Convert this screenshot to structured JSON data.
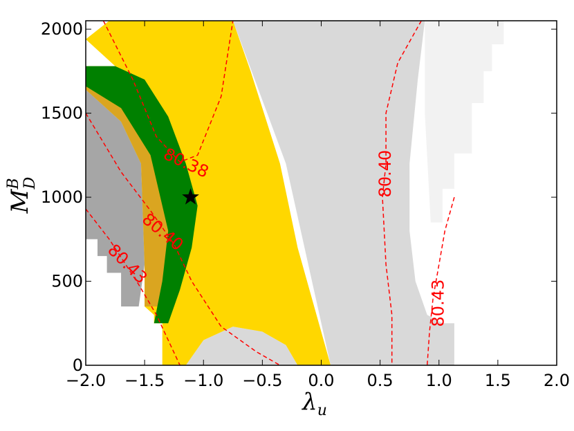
{
  "chart_data": {
    "type": "contour",
    "xlabel": "λ",
    "xlabel_sub": "u",
    "ylabel": "M",
    "ylabel_sup": "B",
    "ylabel_sub": "D",
    "xlim": [
      -2.0,
      2.0
    ],
    "ylim": [
      0,
      2050
    ],
    "x_ticks": [
      -2.0,
      -1.5,
      -1.0,
      -0.5,
      0.0,
      0.5,
      1.0,
      1.5,
      2.0
    ],
    "x_tick_labels": [
      "−2.0",
      "−1.5",
      "−1.0",
      "−0.5",
      "0.0",
      "0.5",
      "1.0",
      "1.5",
      "2.0"
    ],
    "y_ticks": [
      0,
      500,
      1000,
      1500,
      2000
    ],
    "y_tick_labels": [
      "0",
      "500",
      "1000",
      "1500",
      "2000"
    ],
    "grid": false,
    "colors": {
      "light_gray": "#d9d9d9",
      "lighter_gray": "#f2f2f2",
      "gray": "#a6a6a6",
      "yellow": "#ffd700",
      "goldenrod": "#daa520",
      "green": "#008000",
      "contour": "#ff0000"
    },
    "regions": [
      {
        "color": "lighter_gray",
        "points": [
          [
            0.88,
            2050
          ],
          [
            1.55,
            2050
          ],
          [
            1.55,
            1910
          ],
          [
            1.45,
            1910
          ],
          [
            1.45,
            1750
          ],
          [
            1.38,
            1750
          ],
          [
            1.38,
            1560
          ],
          [
            1.28,
            1560
          ],
          [
            1.28,
            1260
          ],
          [
            1.13,
            1260
          ],
          [
            1.13,
            1050
          ],
          [
            1.03,
            1050
          ],
          [
            1.03,
            850
          ],
          [
            0.93,
            850
          ],
          [
            0.88,
            1500
          ]
        ]
      },
      {
        "color": "light_gray",
        "points": [
          [
            -1.55,
            2050
          ],
          [
            0.88,
            2050
          ],
          [
            0.82,
            1700
          ],
          [
            0.75,
            1200
          ],
          [
            0.75,
            800
          ],
          [
            0.8,
            500
          ],
          [
            0.9,
            300
          ],
          [
            1.03,
            250
          ],
          [
            1.13,
            250
          ],
          [
            1.13,
            0
          ],
          [
            0.08,
            0
          ],
          [
            -0.3,
            1200
          ],
          [
            -0.75,
            2050
          ]
        ]
      },
      {
        "color": "light_gray",
        "points": [
          [
            -1.15,
            0
          ],
          [
            -1.0,
            150
          ],
          [
            -0.75,
            230
          ],
          [
            -0.5,
            200
          ],
          [
            -0.3,
            120
          ],
          [
            -0.2,
            0
          ]
        ]
      },
      {
        "color": "gray",
        "points": [
          [
            -2.0,
            1640
          ],
          [
            -1.7,
            1450
          ],
          [
            -1.53,
            1200
          ],
          [
            -1.5,
            600
          ],
          [
            -1.55,
            350
          ],
          [
            -1.7,
            350
          ],
          [
            -1.7,
            550
          ],
          [
            -1.82,
            550
          ],
          [
            -1.82,
            650
          ],
          [
            -1.9,
            650
          ],
          [
            -1.9,
            750
          ],
          [
            -2.0,
            750
          ]
        ]
      },
      {
        "color": "yellow",
        "points": [
          [
            -2.0,
            1940
          ],
          [
            -1.8,
            2050
          ],
          [
            -0.75,
            2050
          ],
          [
            -0.6,
            1750
          ],
          [
            -0.35,
            1200
          ],
          [
            -0.2,
            700
          ],
          [
            0.08,
            0
          ],
          [
            -0.2,
            0
          ],
          [
            -0.3,
            120
          ],
          [
            -0.5,
            200
          ],
          [
            -0.75,
            230
          ],
          [
            -1.0,
            150
          ],
          [
            -1.15,
            0
          ],
          [
            -1.35,
            0
          ],
          [
            -1.35,
            250
          ],
          [
            -1.42,
            250
          ],
          [
            -1.42,
            300
          ],
          [
            -1.5,
            350
          ],
          [
            -1.5,
            600
          ],
          [
            -1.53,
            1200
          ],
          [
            -1.7,
            1450
          ],
          [
            -2.0,
            1640
          ],
          [
            -2.0,
            1780
          ],
          [
            -1.75,
            1780
          ]
        ]
      },
      {
        "color": "goldenrod",
        "points": [
          [
            -2.0,
            1660
          ],
          [
            -1.7,
            1530
          ],
          [
            -1.45,
            1250
          ],
          [
            -1.3,
            800
          ],
          [
            -1.35,
            350
          ],
          [
            -1.4,
            350
          ],
          [
            -1.45,
            350
          ],
          [
            -1.5,
            350
          ],
          [
            -1.5,
            600
          ],
          [
            -1.53,
            1200
          ],
          [
            -1.7,
            1450
          ],
          [
            -2.0,
            1640
          ]
        ]
      },
      {
        "color": "green",
        "points": [
          [
            -2.0,
            1780
          ],
          [
            -1.75,
            1780
          ],
          [
            -1.5,
            1700
          ],
          [
            -1.3,
            1480
          ],
          [
            -1.15,
            1200
          ],
          [
            -1.05,
            950
          ],
          [
            -1.1,
            700
          ],
          [
            -1.2,
            450
          ],
          [
            -1.3,
            250
          ],
          [
            -1.42,
            250
          ],
          [
            -1.35,
            500
          ],
          [
            -1.3,
            800
          ],
          [
            -1.45,
            1250
          ],
          [
            -1.7,
            1530
          ],
          [
            -2.0,
            1660
          ]
        ]
      }
    ],
    "contours": [
      {
        "label": "80.38",
        "points": [
          [
            -1.85,
            2050
          ],
          [
            -1.6,
            1700
          ],
          [
            -1.4,
            1360
          ],
          [
            -1.2,
            1210
          ],
          [
            -1.05,
            1250
          ],
          [
            -0.85,
            1600
          ],
          [
            -0.75,
            2050
          ]
        ],
        "label_at": [
          -1.15,
          1200
        ],
        "label_rotation": 25
      },
      {
        "label": "80.40",
        "points": [
          [
            -2.0,
            1500
          ],
          [
            -1.7,
            1150
          ],
          [
            -1.45,
            920
          ],
          [
            -1.25,
            720
          ],
          [
            -1.1,
            500
          ],
          [
            -0.85,
            230
          ],
          [
            -0.55,
            80
          ],
          [
            -0.35,
            0
          ]
        ],
        "label_at": [
          -1.35,
          790
        ],
        "label_rotation": 40
      },
      {
        "label": "80.43",
        "points": [
          [
            -2.0,
            930
          ],
          [
            -1.8,
            750
          ],
          [
            -1.55,
            480
          ],
          [
            -1.4,
            300
          ],
          [
            -1.3,
            150
          ],
          [
            -1.2,
            0
          ]
        ],
        "label_at": [
          -1.65,
          600
        ],
        "label_rotation": 45
      },
      {
        "label": "80.40",
        "points": [
          [
            0.85,
            2050
          ],
          [
            0.65,
            1800
          ],
          [
            0.55,
            1500
          ],
          [
            0.55,
            1200
          ],
          [
            0.52,
            1000
          ],
          [
            0.55,
            600
          ],
          [
            0.6,
            300
          ],
          [
            0.6,
            0
          ]
        ],
        "label_at": [
          0.55,
          1140
        ],
        "label_rotation": -90
      },
      {
        "label": "80.43",
        "points": [
          [
            1.13,
            1000
          ],
          [
            1.05,
            800
          ],
          [
            1.0,
            600
          ],
          [
            0.95,
            400
          ],
          [
            0.92,
            200
          ],
          [
            0.9,
            0
          ]
        ],
        "label_at": [
          1.0,
          370
        ],
        "label_rotation": -90
      }
    ],
    "marker": {
      "shape": "star",
      "x": -1.11,
      "y": 1000
    }
  }
}
